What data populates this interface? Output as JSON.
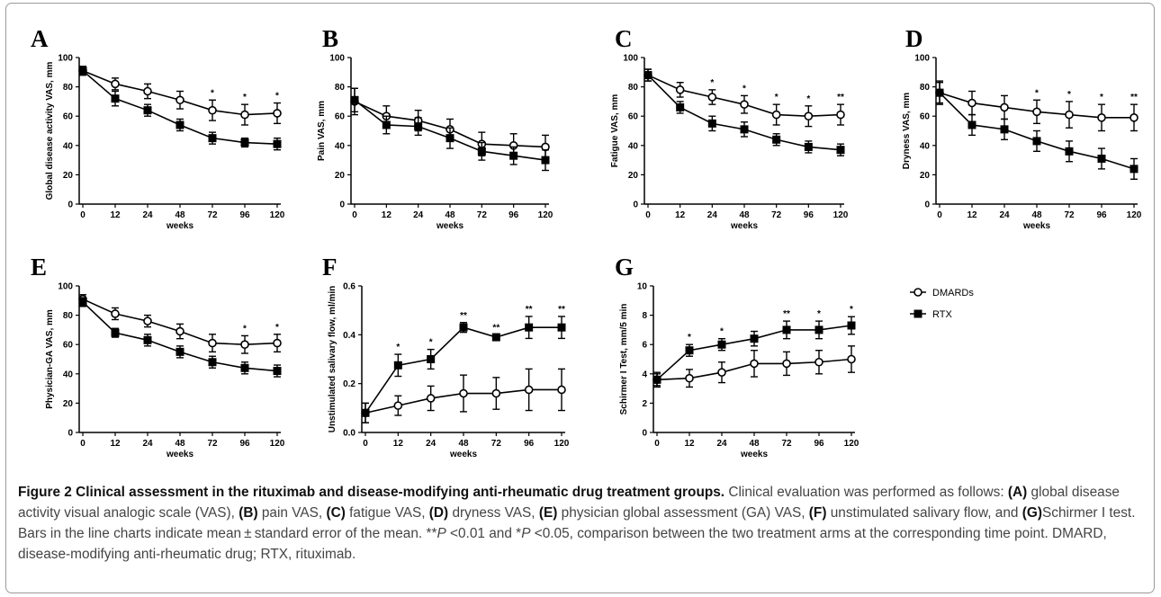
{
  "chart_data": [
    {
      "type": "line",
      "panel": "A",
      "ylabel": "Global disease activity VAS, mm",
      "xlabel": "weeks",
      "categories": [
        "0",
        "12",
        "24",
        "48",
        "72",
        "96",
        "120"
      ],
      "ylim": [
        0,
        100
      ],
      "yticks": [
        0,
        20,
        40,
        60,
        80,
        100
      ],
      "series": [
        {
          "name": "DMARDs",
          "values": [
            91,
            82,
            77,
            71,
            64,
            61,
            62
          ],
          "errors": [
            3,
            4,
            5,
            6,
            7,
            7,
            7
          ]
        },
        {
          "name": "RTX",
          "values": [
            91,
            72,
            64,
            54,
            45,
            42,
            41
          ],
          "errors": [
            3,
            5,
            4,
            4,
            4,
            3,
            4
          ]
        }
      ],
      "significance": [
        "",
        "",
        "",
        "",
        "*",
        "*",
        "*"
      ]
    },
    {
      "type": "line",
      "panel": "B",
      "ylabel": "Pain VAS, mm",
      "xlabel": "weeks",
      "categories": [
        "0",
        "12",
        "24",
        "48",
        "72",
        "96",
        "120"
      ],
      "ylim": [
        0,
        100
      ],
      "yticks": [
        0,
        20,
        40,
        60,
        80,
        100
      ],
      "series": [
        {
          "name": "DMARDs",
          "values": [
            70,
            60,
            57,
            51,
            41,
            40,
            39
          ],
          "errors": [
            9,
            7,
            7,
            7,
            8,
            8,
            8
          ]
        },
        {
          "name": "RTX",
          "values": [
            71,
            54,
            53,
            45,
            36,
            33,
            30
          ],
          "errors": [
            8,
            6,
            6,
            7,
            6,
            6,
            7
          ]
        }
      ],
      "significance": [
        "",
        "",
        "",
        "",
        "",
        "",
        ""
      ]
    },
    {
      "type": "line",
      "panel": "C",
      "ylabel": "Fatigue VAS, mm",
      "xlabel": "weeks",
      "categories": [
        "0",
        "12",
        "24",
        "48",
        "72",
        "96",
        "120"
      ],
      "ylim": [
        0,
        100
      ],
      "yticks": [
        0,
        20,
        40,
        60,
        80,
        100
      ],
      "series": [
        {
          "name": "DMARDs",
          "values": [
            88,
            78,
            73,
            68,
            61,
            60,
            61
          ],
          "errors": [
            4,
            5,
            5,
            6,
            7,
            7,
            7
          ]
        },
        {
          "name": "RTX",
          "values": [
            88,
            66,
            55,
            51,
            44,
            39,
            37
          ],
          "errors": [
            4,
            4,
            5,
            5,
            4,
            4,
            4
          ]
        }
      ],
      "significance": [
        "",
        "",
        "*",
        "*",
        "*",
        "*",
        "**"
      ]
    },
    {
      "type": "line",
      "panel": "D",
      "ylabel": "Dryness VAS, mm",
      "xlabel": "weeks",
      "categories": [
        "0",
        "12",
        "24",
        "48",
        "72",
        "96",
        "120"
      ],
      "ylim": [
        0,
        100
      ],
      "yticks": [
        0,
        20,
        40,
        60,
        80,
        100
      ],
      "series": [
        {
          "name": "DMARDs",
          "values": [
            76,
            69,
            66,
            63,
            61,
            59,
            59
          ],
          "errors": [
            8,
            8,
            8,
            8,
            9,
            9,
            9
          ]
        },
        {
          "name": "RTX",
          "values": [
            76,
            54,
            51,
            43,
            36,
            31,
            24
          ],
          "errors": [
            7,
            7,
            7,
            7,
            7,
            7,
            7
          ]
        }
      ],
      "significance": [
        "",
        "",
        "",
        "*",
        "*",
        "*",
        "**"
      ]
    },
    {
      "type": "line",
      "panel": "E",
      "ylabel": "Physician-GA VAS, mm",
      "xlabel": "weeks",
      "categories": [
        "0",
        "12",
        "24",
        "48",
        "72",
        "96",
        "120"
      ],
      "ylim": [
        0,
        100
      ],
      "yticks": [
        0,
        20,
        40,
        60,
        80,
        100
      ],
      "series": [
        {
          "name": "DMARDs",
          "values": [
            91,
            81,
            76,
            69,
            61,
            60,
            61
          ],
          "errors": [
            3,
            4,
            4,
            5,
            6,
            6,
            6
          ]
        },
        {
          "name": "RTX",
          "values": [
            89,
            68,
            63,
            55,
            48,
            44,
            42
          ],
          "errors": [
            3,
            3,
            4,
            4,
            4,
            4,
            4
          ]
        }
      ],
      "significance": [
        "",
        "",
        "",
        "",
        "",
        "*",
        "*"
      ]
    },
    {
      "type": "line",
      "panel": "F",
      "ylabel": "Unstimulated salivary flow, ml/min",
      "xlabel": "weeks",
      "categories": [
        "0",
        "12",
        "24",
        "48",
        "72",
        "96",
        "120"
      ],
      "ylim": [
        0,
        0.6
      ],
      "yticks": [
        0.0,
        0.2,
        0.4,
        0.6
      ],
      "series": [
        {
          "name": "DMARDs",
          "values": [
            0.08,
            0.11,
            0.14,
            0.16,
            0.16,
            0.175,
            0.175
          ],
          "errors": [
            0.04,
            0.04,
            0.05,
            0.075,
            0.065,
            0.085,
            0.085
          ]
        },
        {
          "name": "RTX",
          "values": [
            0.08,
            0.275,
            0.3,
            0.43,
            0.39,
            0.43,
            0.43
          ],
          "errors": [
            0.04,
            0.045,
            0.04,
            0.02,
            0.01,
            0.045,
            0.045
          ]
        }
      ],
      "significance": [
        "",
        "*",
        "*",
        "**",
        "**",
        "**",
        "**"
      ]
    },
    {
      "type": "line",
      "panel": "G",
      "ylabel": "Schirmer I Test, mm/5 min",
      "xlabel": "weeks",
      "categories": [
        "0",
        "12",
        "24",
        "48",
        "72",
        "96",
        "120"
      ],
      "ylim": [
        0,
        10
      ],
      "yticks": [
        0,
        2,
        4,
        6,
        8,
        10
      ],
      "series": [
        {
          "name": "DMARDs",
          "values": [
            3.6,
            3.7,
            4.1,
            4.7,
            4.7,
            4.8,
            5.0
          ],
          "errors": [
            0.5,
            0.6,
            0.7,
            0.9,
            0.8,
            0.8,
            0.9
          ]
        },
        {
          "name": "RTX",
          "values": [
            3.6,
            5.6,
            6.0,
            6.4,
            7.0,
            7.0,
            7.3
          ],
          "errors": [
            0.4,
            0.4,
            0.4,
            0.5,
            0.6,
            0.6,
            0.6
          ]
        }
      ],
      "significance": [
        "",
        "*",
        "*",
        "",
        "**",
        "*",
        "*"
      ]
    }
  ],
  "legend": {
    "items": [
      {
        "label": "DMARDs",
        "marker": "open-circle"
      },
      {
        "label": "RTX",
        "marker": "filled-square"
      }
    ]
  },
  "colors": {
    "line": "#000000",
    "caption_text": "#444444",
    "frame": "#9a9a9a"
  },
  "caption": {
    "title": "Figure 2 Clinical assessment in the rituximab and disease-modifying anti-rheumatic drug treatment groups.",
    "p1": " Clinical evaluation was performed as follows: ",
    "a_tag": "(A)",
    "a_text": " global disease activity visual analogic scale (VAS), ",
    "b_tag": "(B)",
    "b_text": " pain VAS, ",
    "c_tag": "(C)",
    "c_text": " fatigue VAS, ",
    "d_tag": "(D)",
    "d_text": " dryness VAS, ",
    "e_tag": "(E)",
    "e_text": " physician global assessment (GA) VAS, ",
    "f_tag": "(F)",
    "f_text": " unstimulated salivary flow, and ",
    "g_tag": "(G)",
    "g_text": "Schirmer I test. Bars in the line charts indicate mean ± standard error of the mean. **",
    "p_italic_1": "P",
    "p_mid": " <0.01 and *",
    "p_italic_2": "P",
    "p_end": " <0.05, comparison between the two treatment arms at the corresponding time point. DMARD, disease-modifying anti-rheumatic drug; RTX, rituximab."
  }
}
